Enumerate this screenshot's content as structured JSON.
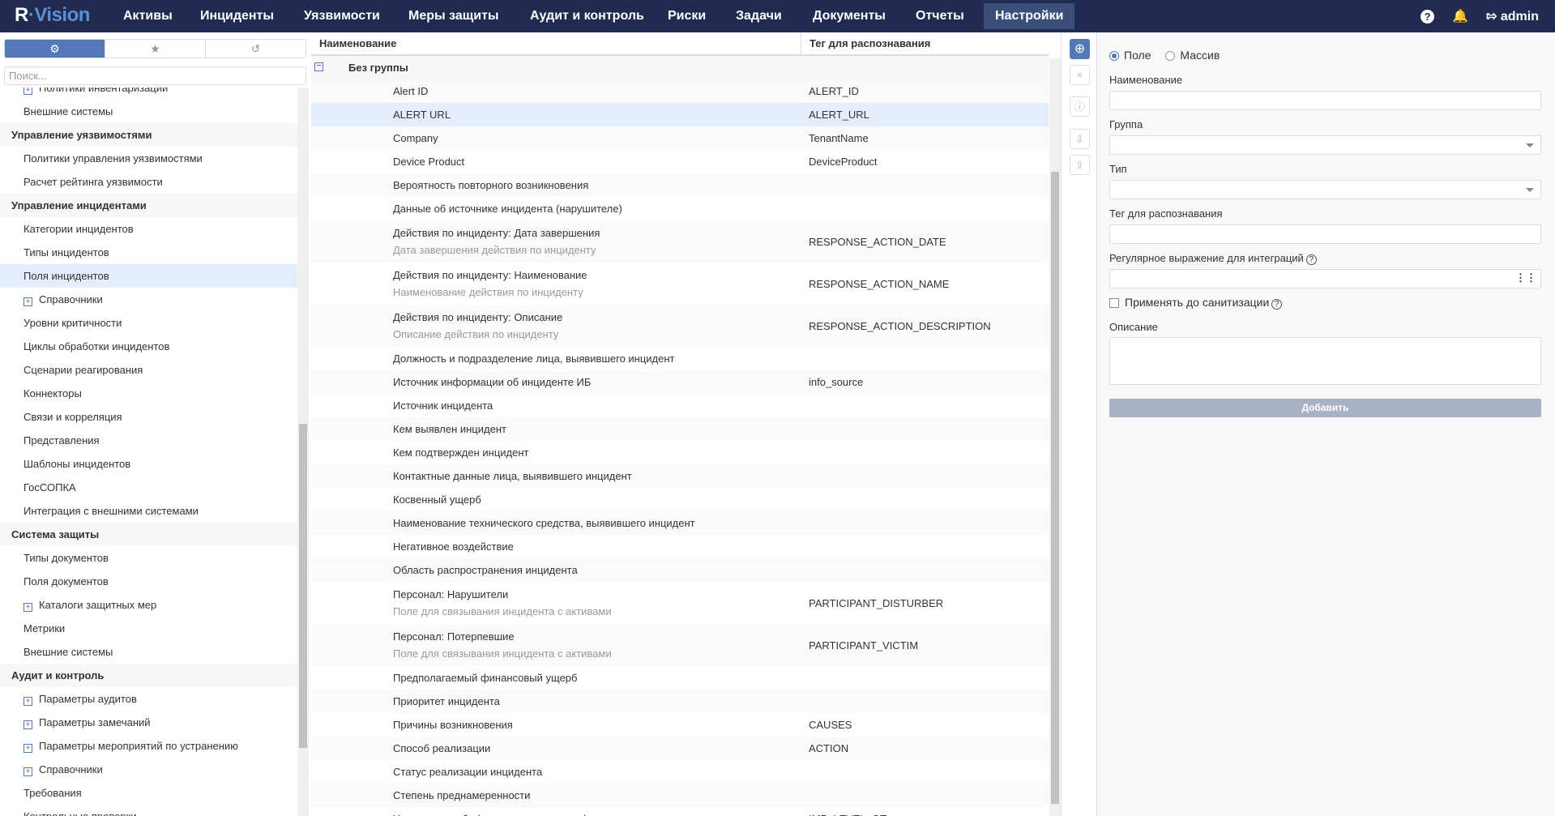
{
  "app": {
    "logo": "R-Vision",
    "user": "admin"
  },
  "nav": [
    "Активы",
    "Инциденты",
    "Уязвимости",
    "Меры защиты",
    "Аудит и контроль",
    "Риски",
    "Задачи",
    "Документы",
    "Отчеты",
    "Настройки"
  ],
  "nav_active": "Настройки",
  "sidebar": {
    "search_placeholder": "Поиск...",
    "tabs": [
      "gear-icon",
      "star-icon",
      "history-icon"
    ],
    "items": [
      {
        "label": "Политики инвентаризации",
        "type": "expand"
      },
      {
        "label": "Внешние системы",
        "type": "item"
      },
      {
        "label": "Управление уязвимостями",
        "type": "section"
      },
      {
        "label": "Политики управления уязвимостями",
        "type": "item"
      },
      {
        "label": "Расчет рейтинга уязвимости",
        "type": "item"
      },
      {
        "label": "Управление инцидентами",
        "type": "section"
      },
      {
        "label": "Категории инцидентов",
        "type": "item"
      },
      {
        "label": "Типы инцидентов",
        "type": "item"
      },
      {
        "label": "Поля инцидентов",
        "type": "item",
        "selected": true
      },
      {
        "label": "Справочники",
        "type": "expand"
      },
      {
        "label": "Уровни критичности",
        "type": "item"
      },
      {
        "label": "Циклы обработки инцидентов",
        "type": "item"
      },
      {
        "label": "Сценарии реагирования",
        "type": "item"
      },
      {
        "label": "Коннекторы",
        "type": "item"
      },
      {
        "label": "Связи и корреляция",
        "type": "item"
      },
      {
        "label": "Представления",
        "type": "item"
      },
      {
        "label": "Шаблоны инцидентов",
        "type": "item"
      },
      {
        "label": "ГосСОПКА",
        "type": "item"
      },
      {
        "label": "Интеграция с внешними системами",
        "type": "item"
      },
      {
        "label": "Система защиты",
        "type": "section"
      },
      {
        "label": "Типы документов",
        "type": "item"
      },
      {
        "label": "Поля документов",
        "type": "item"
      },
      {
        "label": "Каталоги защитных мер",
        "type": "expand"
      },
      {
        "label": "Метрики",
        "type": "item"
      },
      {
        "label": "Внешние системы",
        "type": "item"
      },
      {
        "label": "Аудит и контроль",
        "type": "section"
      },
      {
        "label": "Параметры аудитов",
        "type": "expand"
      },
      {
        "label": "Параметры замечаний",
        "type": "expand"
      },
      {
        "label": "Параметры мероприятий по устранению",
        "type": "expand"
      },
      {
        "label": "Справочники",
        "type": "expand"
      },
      {
        "label": "Требования",
        "type": "item"
      },
      {
        "label": "Контрольные проверки",
        "type": "item"
      }
    ]
  },
  "table": {
    "columns": [
      "Наименование",
      "Тег для распознавания"
    ],
    "group": "Без группы",
    "rows": [
      {
        "name": "Alert ID",
        "tag": "ALERT_ID"
      },
      {
        "name": "ALERT URL",
        "tag": "ALERT_URL",
        "selected": true
      },
      {
        "name": "Company",
        "tag": "TenantName"
      },
      {
        "name": "Device Product",
        "tag": "DeviceProduct"
      },
      {
        "name": "Вероятность повторного возникновения",
        "tag": ""
      },
      {
        "name": "Данные об источнике инцидента (нарушителе)",
        "tag": ""
      },
      {
        "name": "Действия по инциденту: Дата завершения",
        "sub": "Дата завершения действия по инциденту",
        "tag": "RESPONSE_ACTION_DATE"
      },
      {
        "name": "Действия по инциденту: Наименование",
        "sub": "Наименование действия по инциденту",
        "tag": "RESPONSE_ACTION_NAME"
      },
      {
        "name": "Действия по инциденту: Описание",
        "sub": "Описание действия по инциденту",
        "tag": "RESPONSE_ACTION_DESCRIPTION"
      },
      {
        "name": "Должность и подразделение лица, выявившего инцидент",
        "tag": ""
      },
      {
        "name": "Источник информации об инциденте ИБ",
        "tag": "info_source"
      },
      {
        "name": "Источник инцидента",
        "tag": ""
      },
      {
        "name": "Кем выявлен инцидент",
        "tag": ""
      },
      {
        "name": "Кем подтвержден инцидент",
        "tag": ""
      },
      {
        "name": "Контактные данные лица, выявившего инцидент",
        "tag": ""
      },
      {
        "name": "Косвенный ущерб",
        "tag": ""
      },
      {
        "name": "Наименование технического средства, выявившего инцидент",
        "tag": ""
      },
      {
        "name": "Негативное воздействие",
        "tag": ""
      },
      {
        "name": "Область распространения инцидента",
        "tag": ""
      },
      {
        "name": "Персонал: Нарушители",
        "sub": "Поле для связывания инцидента с активами",
        "tag": "PARTICIPANT_DISTURBER"
      },
      {
        "name": "Персонал: Потерпевшие",
        "sub": "Поле для связывания инцидента с активами",
        "tag": "PARTICIPANT_VICTIM"
      },
      {
        "name": "Предполагаемый финансовый ущерб",
        "tag": ""
      },
      {
        "name": "Приоритет инцидента",
        "tag": ""
      },
      {
        "name": "Причины возникновения",
        "tag": "CAUSES"
      },
      {
        "name": "Способ реализации",
        "tag": "ACTION"
      },
      {
        "name": "Статус реализации инцидента",
        "tag": ""
      },
      {
        "name": "Степень преднамеренности",
        "tag": ""
      },
      {
        "name": "Уровень ущерба (качественная оценка)",
        "tag": "IMP_LEVEL_QT"
      }
    ]
  },
  "form": {
    "radio_field": "Поле",
    "radio_array": "Массив",
    "name_label": "Наименование",
    "group_label": "Группа",
    "type_label": "Тип",
    "tag_label": "Тег для распознавания",
    "regex_label": "Регулярное выражение для интеграций",
    "sanitize_label": "Применять до санитизации",
    "desc_label": "Описание",
    "add_button": "Добавить"
  },
  "colors": {
    "topbar": "#212b50",
    "accent": "#5578b8",
    "selected_row": "#e3edfb"
  }
}
